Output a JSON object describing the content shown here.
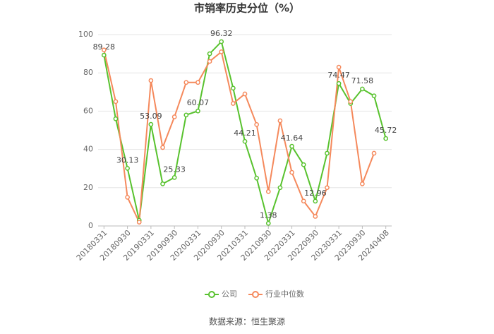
{
  "chart_data": {
    "type": "line",
    "title": "市销率历史分位（%）",
    "categories": [
      "20180331",
      null,
      "20180930",
      null,
      "20190331",
      null,
      "20190930",
      null,
      "20200331",
      null,
      "20200930",
      null,
      "20210331",
      null,
      "20210930",
      null,
      "20220331",
      null,
      "20220930",
      null,
      "20230331",
      null,
      "20230930",
      null,
      "20240408"
    ],
    "series": [
      {
        "name": "公司",
        "color": "#58c22e",
        "values": [
          89.28,
          56,
          30.13,
          3,
          53.09,
          22,
          25.33,
          58,
          60.07,
          90,
          96.32,
          72,
          44.21,
          25,
          1.38,
          20,
          41.64,
          32,
          12.96,
          38,
          74.47,
          64,
          71.58,
          68,
          45.72
        ],
        "value_labels": [
          "89.28",
          null,
          "30.13",
          null,
          "53.09",
          null,
          "25.33",
          null,
          "60.07",
          null,
          "96.32",
          null,
          "44.21",
          null,
          "1.38",
          null,
          "41.64",
          null,
          "12.96",
          null,
          "74.47",
          null,
          "71.58",
          null,
          "45.72"
        ]
      },
      {
        "name": "行业中位数",
        "color": "#f5895c",
        "values": [
          92,
          65,
          15,
          2,
          76,
          41,
          57,
          75,
          75,
          86,
          91,
          64,
          69,
          53,
          18,
          55,
          28,
          13,
          5,
          20,
          83,
          65,
          22,
          38,
          null
        ]
      }
    ],
    "ylim": [
      0,
      100
    ],
    "yticks": [
      0,
      20,
      40,
      60,
      80,
      100
    ],
    "grid": true,
    "source": "数据来源：恒生聚源"
  }
}
